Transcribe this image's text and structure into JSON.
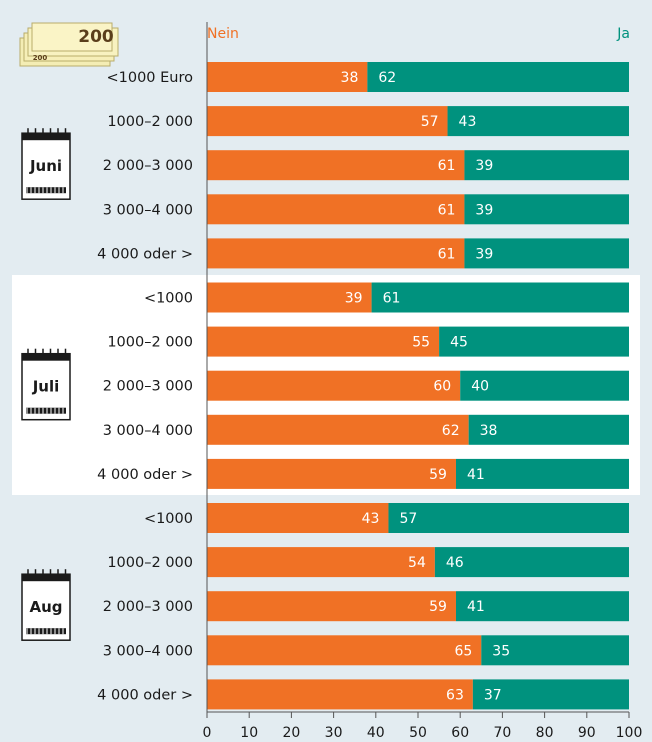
{
  "chart_data": {
    "type": "bar",
    "stacked": true,
    "orientation": "horizontal",
    "legend": {
      "nein": "Nein",
      "ja": "Ja"
    },
    "xlim": [
      0,
      100
    ],
    "xticks": [
      "0",
      "10",
      "20",
      "30",
      "40",
      "50",
      "60",
      "70",
      "80",
      "90",
      "100"
    ],
    "money_badge": "200",
    "money_badge_small": "200",
    "colors": {
      "nein": "#f07125",
      "ja": "#00927e",
      "background": "#e3ecf1",
      "highlight": "#ffffff"
    },
    "groups": [
      {
        "label": "Juni",
        "rows": [
          {
            "category": "<1000  Euro",
            "nein": 38,
            "ja": 62
          },
          {
            "category": "1000–2 000",
            "nein": 57,
            "ja": 43
          },
          {
            "category": "2 000–3 000",
            "nein": 61,
            "ja": 39
          },
          {
            "category": "3 000–4 000",
            "nein": 61,
            "ja": 39
          },
          {
            "category": "4 000 oder >",
            "nein": 61,
            "ja": 39
          }
        ]
      },
      {
        "label": "Juli",
        "rows": [
          {
            "category": "<1000",
            "nein": 39,
            "ja": 61
          },
          {
            "category": "1000–2 000",
            "nein": 55,
            "ja": 45
          },
          {
            "category": "2 000–3 000",
            "nein": 60,
            "ja": 40
          },
          {
            "category": "3 000–4 000",
            "nein": 62,
            "ja": 38
          },
          {
            "category": "4 000 oder >",
            "nein": 59,
            "ja": 41
          }
        ]
      },
      {
        "label": "Aug",
        "rows": [
          {
            "category": "<1000",
            "nein": 43,
            "ja": 57
          },
          {
            "category": "1000–2 000",
            "nein": 54,
            "ja": 46
          },
          {
            "category": "2 000–3 000",
            "nein": 59,
            "ja": 41
          },
          {
            "category": "3 000–4 000",
            "nein": 65,
            "ja": 35
          },
          {
            "category": "4 000 oder >",
            "nein": 63,
            "ja": 37
          }
        ]
      }
    ]
  }
}
